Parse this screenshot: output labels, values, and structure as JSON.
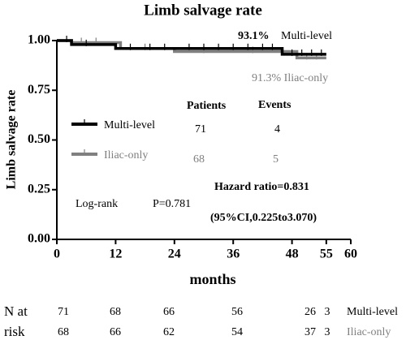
{
  "chart_data": {
    "type": "line",
    "step": true,
    "title": "Limb salvage rate",
    "xlabel": "months",
    "ylabel": "Limb salvage rate",
    "xlim": [
      0,
      60
    ],
    "xticks": [
      0,
      12,
      24,
      36,
      48,
      55,
      60
    ],
    "ylim": [
      0,
      1
    ],
    "yticks": [
      {
        "value": 0,
        "label": "0.00"
      },
      {
        "value": 0.25,
        "label": "0.25"
      },
      {
        "value": 0.5,
        "label": "0.50"
      },
      {
        "value": 0.75,
        "label": "0.75"
      },
      {
        "value": 1,
        "label": "1.00"
      }
    ],
    "series": [
      {
        "name": "Iliac-only",
        "color": "#808080",
        "x": [
          0,
          3,
          13,
          24,
          49,
          55
        ],
        "values": [
          1.0,
          0.99,
          0.96,
          0.945,
          0.913,
          0.913
        ],
        "censored": [
          5,
          8,
          18,
          30,
          40,
          51,
          53
        ]
      },
      {
        "name": "Multi-level",
        "color": "#000000",
        "x": [
          0,
          3,
          12,
          46,
          55
        ],
        "values": [
          1.0,
          0.98,
          0.96,
          0.931,
          0.931
        ],
        "censored": [
          2,
          6,
          15,
          19,
          22,
          27,
          30,
          33,
          36,
          39,
          42,
          44,
          48,
          50,
          52,
          54
        ]
      }
    ],
    "end_labels": [
      {
        "value": "93.1%",
        "text": "Multi-level"
      },
      {
        "text": "91.3% Iliac-only"
      }
    ],
    "legend_table": {
      "headers": [
        "Patients",
        "Events"
      ],
      "rows": [
        [
          68,
          5
        ],
        [
          71,
          4
        ]
      ]
    },
    "hazard_ratio": "Hazard ratio=0.831",
    "ci": "(95%CI,0.225to3.070)",
    "log_rank": "Log-rank",
    "p_value": "P=0.781",
    "risk_table": {
      "label": [
        "N at",
        "risk"
      ],
      "rows": [
        {
          "name": "Multi-level",
          "values": [
            71,
            68,
            66,
            56,
            26,
            3
          ]
        },
        {
          "name": "Iliac-only",
          "values": [
            68,
            66,
            62,
            54,
            37,
            3
          ]
        }
      ]
    }
  }
}
